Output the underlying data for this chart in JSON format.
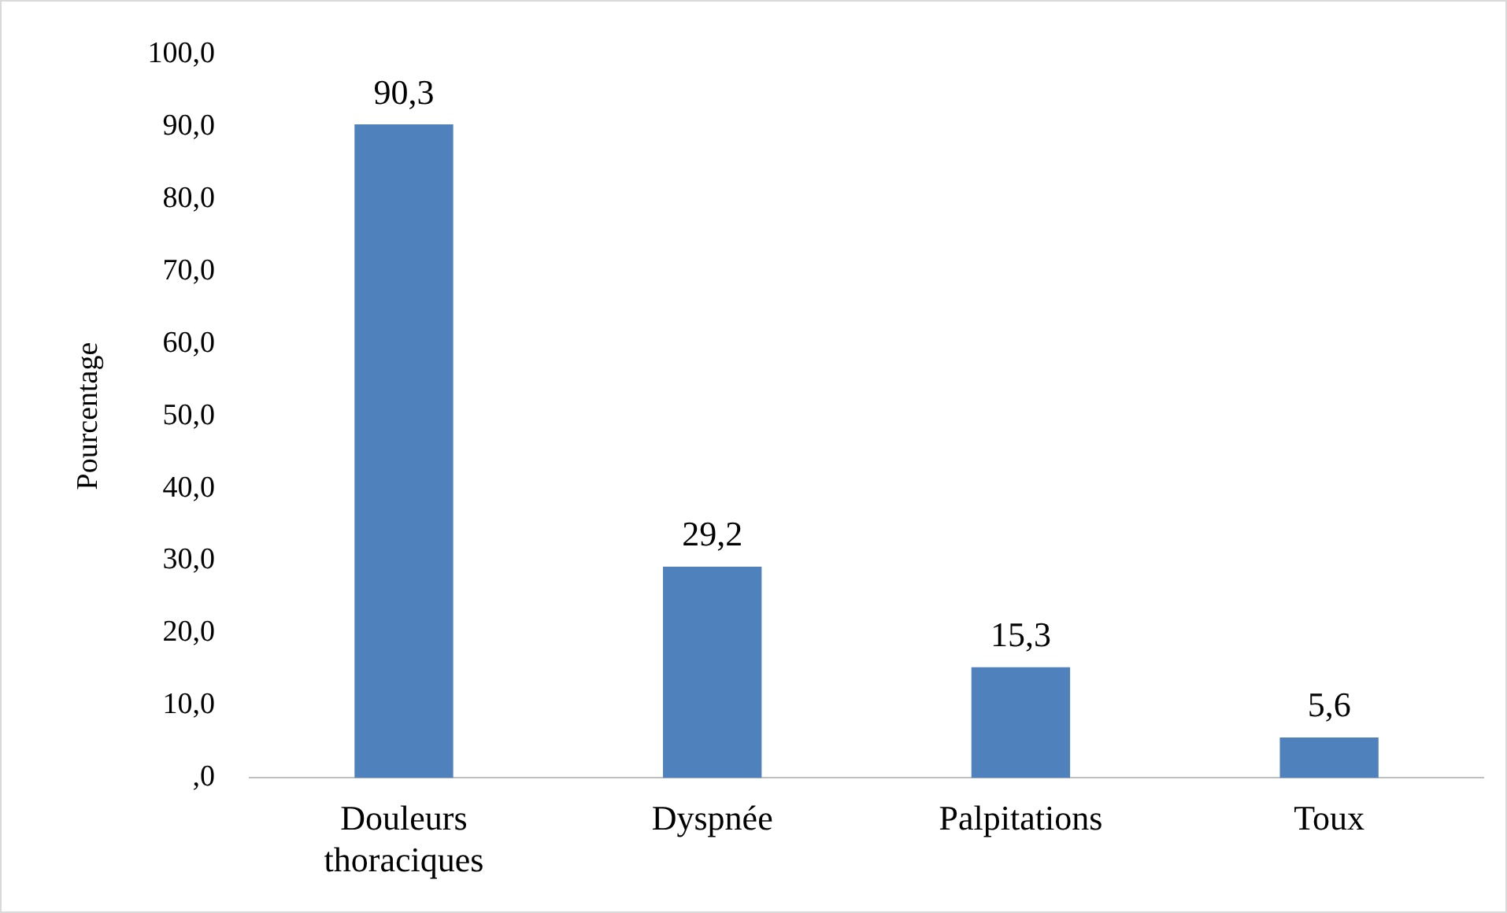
{
  "chart_data": {
    "type": "bar",
    "ylabel": "Pourcentage",
    "categories": [
      "Douleurs thoraciques",
      "Dyspnée",
      "Palpitations",
      "Toux"
    ],
    "values": [
      90.3,
      29.2,
      15.3,
      5.6
    ],
    "color": "#4f81bd",
    "value_labels": [
      "90,3",
      "29,2",
      "15,3",
      "5,6"
    ],
    "ylim": [
      0,
      100
    ],
    "yticks": [
      {
        "value": 0,
        "label": ",0"
      },
      {
        "value": 10,
        "label": "10,0"
      },
      {
        "value": 20,
        "label": "20,0"
      },
      {
        "value": 30,
        "label": "30,0"
      },
      {
        "value": 40,
        "label": "40,0"
      },
      {
        "value": 50,
        "label": "50,0"
      },
      {
        "value": 60,
        "label": "60,0"
      },
      {
        "value": 70,
        "label": "70,0"
      },
      {
        "value": 80,
        "label": "80,0"
      },
      {
        "value": 90,
        "label": "90,0"
      },
      {
        "value": 100,
        "label": "100,0"
      }
    ],
    "grid": false,
    "legend": false
  }
}
